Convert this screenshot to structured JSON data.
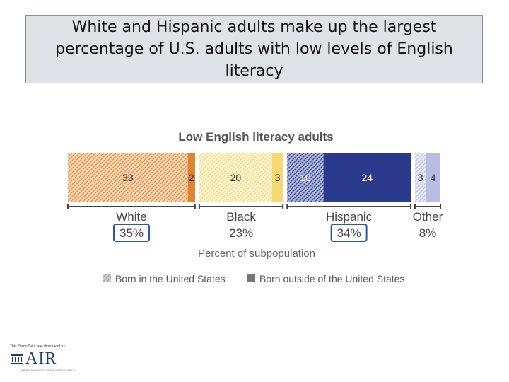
{
  "slide": {
    "title": "White and Hispanic adults make up the largest percentage of U.S. adults with low levels of English literacy"
  },
  "footer": {
    "credit": "This PowerPoint was developed by:",
    "logo_text": "AIR",
    "logo_tagline": "AMERICAN INSTITUTES FOR RESEARCH"
  },
  "chart_data": {
    "type": "bar",
    "orientation": "horizontal-stacked",
    "title": "Low English literacy adults",
    "xlabel": "Percent of subpopulation",
    "xlim": [
      0,
      100
    ],
    "series": [
      {
        "name": "Born in the United States"
      },
      {
        "name": "Born outside of the United States"
      }
    ],
    "groups": [
      {
        "name": "White",
        "total": "35%",
        "highlight": true,
        "color": "#e0842f",
        "light": "#f5d5b3",
        "segments": [
          {
            "series": "Born in the United States",
            "value": 33
          },
          {
            "series": "Born outside of the United States",
            "value": 2
          }
        ]
      },
      {
        "name": "Black",
        "total": "23%",
        "highlight": false,
        "color": "#f6d972",
        "light": "#fbf3d4",
        "segments": [
          {
            "series": "Born in the United States",
            "value": 20
          },
          {
            "series": "Born outside of the United States",
            "value": 3
          }
        ]
      },
      {
        "name": "Hispanic",
        "total": "34%",
        "highlight": true,
        "color": "#2b3a8c",
        "light": "#aab2d8",
        "segments": [
          {
            "series": "Born in the United States",
            "value": 10
          },
          {
            "series": "Born outside of the United States",
            "value": 24
          }
        ]
      },
      {
        "name": "Other",
        "total": "8%",
        "highlight": false,
        "color": "#b9bde3",
        "light": "#e6e8f6",
        "segments": [
          {
            "series": "Born in the United States",
            "value": 3
          },
          {
            "series": "Born outside of the United States",
            "value": 4
          }
        ]
      }
    ],
    "legend": {
      "position": "bottom"
    },
    "colors": {
      "highlight_box": "#2b5aa5",
      "legend_swatch": "#777777"
    }
  }
}
